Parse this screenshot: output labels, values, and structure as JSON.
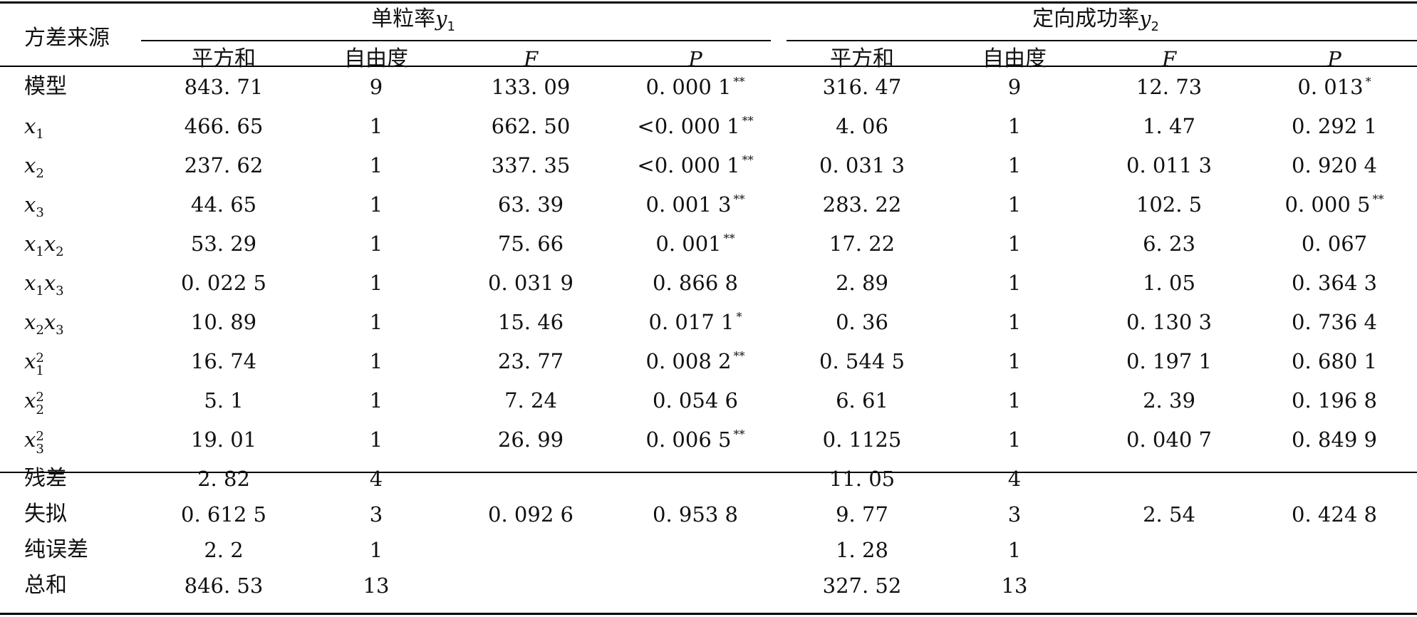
{
  "header": {
    "source_label": "方差来源",
    "group1_label": "单粒率",
    "group1_var": "y",
    "group1_sub": "1",
    "group2_label": "定向成功率",
    "group2_var": "y",
    "group2_sub": "2",
    "col_ss": "平方和",
    "col_df": "自由度",
    "col_f": "F",
    "col_p": "P"
  },
  "rows": [
    {
      "src": "模型",
      "ss1": "843. 71",
      "df1": "9",
      "f1": "133. 09",
      "p1": "0. 000 1",
      "s1": "**",
      "ss2": "316. 47",
      "df2": "9",
      "f2": "12. 73",
      "p2": "0. 013",
      "s2": "*"
    },
    {
      "src_var": "x",
      "src_sub": "1",
      "ss1": "466. 65",
      "df1": "1",
      "f1": "662. 50",
      "p1": "<0. 000 1",
      "s1": "**",
      "ss2": "4. 06",
      "df2": "1",
      "f2": "1. 47",
      "p2": "0. 292 1",
      "s2": ""
    },
    {
      "src_var": "x",
      "src_sub": "2",
      "ss1": "237. 62",
      "df1": "1",
      "f1": "337. 35",
      "p1": "<0. 000 1",
      "s1": "**",
      "ss2": "0. 031 3",
      "df2": "1",
      "f2": "0. 011 3",
      "p2": "0. 920 4",
      "s2": ""
    },
    {
      "src_var": "x",
      "src_sub": "3",
      "ss1": "44. 65",
      "df1": "1",
      "f1": "63. 39",
      "p1": "0. 001 3",
      "s1": "**",
      "ss2": "283. 22",
      "df2": "1",
      "f2": "102. 5",
      "p2": "0. 000 5",
      "s2": "**"
    },
    {
      "src_var": "x",
      "src_sub": "1",
      "src_var2": "x",
      "src_sub2": "2",
      "ss1": "53. 29",
      "df1": "1",
      "f1": "75. 66",
      "p1": "0. 001",
      "s1": "**",
      "ss2": "17. 22",
      "df2": "1",
      "f2": "6. 23",
      "p2": "0. 067",
      "s2": ""
    },
    {
      "src_var": "x",
      "src_sub": "1",
      "src_var2": "x",
      "src_sub2": "3",
      "ss1": "0. 022 5",
      "df1": "1",
      "f1": "0. 031 9",
      "p1": "0. 866 8",
      "s1": "",
      "ss2": "2. 89",
      "df2": "1",
      "f2": "1. 05",
      "p2": "0. 364 3",
      "s2": ""
    },
    {
      "src_var": "x",
      "src_sub": "2",
      "src_var2": "x",
      "src_sub2": "3",
      "ss1": "10. 89",
      "df1": "1",
      "f1": "15. 46",
      "p1": "0. 017 1",
      "s1": "*",
      "ss2": "0. 36",
      "df2": "1",
      "f2": "0. 130 3",
      "p2": "0. 736 4",
      "s2": ""
    },
    {
      "src_var": "x",
      "src_sub": "1",
      "src_sup": "2",
      "ss1": "16. 74",
      "df1": "1",
      "f1": "23. 77",
      "p1": "0. 008 2",
      "s1": "**",
      "ss2": "0. 544 5",
      "df2": "1",
      "f2": "0. 197 1",
      "p2": "0. 680 1",
      "s2": ""
    },
    {
      "src_var": "x",
      "src_sub": "2",
      "src_sup": "2",
      "ss1": "5. 1",
      "df1": "1",
      "f1": "7. 24",
      "p1": "0. 054 6",
      "s1": "",
      "ss2": "6. 61",
      "df2": "1",
      "f2": "2. 39",
      "p2": "0. 196 8",
      "s2": ""
    },
    {
      "src_var": "x",
      "src_sub": "3",
      "src_sup": "2",
      "ss1": "19. 01",
      "df1": "1",
      "f1": "26. 99",
      "p1": "0. 006 5",
      "s1": "**",
      "ss2": "0. 1125",
      "df2": "1",
      "f2": "0. 040 7",
      "p2": "0. 849 9",
      "s2": ""
    },
    {
      "src": "残差",
      "ss1": "2. 82",
      "df1": "4",
      "f1": "",
      "p1": "",
      "s1": "",
      "ss2": "11. 05",
      "df2": "4",
      "f2": "",
      "p2": "",
      "s2": ""
    },
    {
      "src": "失拟",
      "ss1": "0. 612 5",
      "df1": "3",
      "f1": "0. 092 6",
      "p1": "0. 953 8",
      "s1": "",
      "ss2": "9. 77",
      "df2": "3",
      "f2": "2. 54",
      "p2": "0. 424 8",
      "s2": ""
    },
    {
      "src": "纯误差",
      "ss1": "2. 2",
      "df1": "1",
      "f1": "",
      "p1": "",
      "s1": "",
      "ss2": "1. 28",
      "df2": "1",
      "f2": "",
      "p2": "",
      "s2": ""
    },
    {
      "src": "总和",
      "ss1": "846. 53",
      "df1": "13",
      "f1": "",
      "p1": "",
      "s1": "",
      "ss2": "327. 52",
      "df2": "13",
      "f2": "",
      "p2": "",
      "s2": ""
    }
  ]
}
